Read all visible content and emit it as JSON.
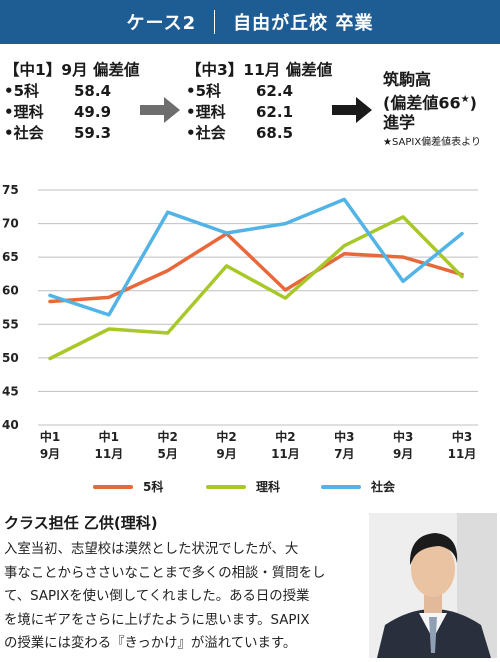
{
  "header": {
    "case": "ケース2",
    "title": "自由が丘校 卒業"
  },
  "before": {
    "title": "【中1】9月 偏差値",
    "rows": [
      {
        "subject": "•5科",
        "value": "58.4"
      },
      {
        "subject": "•理科",
        "value": "49.9"
      },
      {
        "subject": "•社会",
        "value": "59.3"
      }
    ]
  },
  "after": {
    "title": "【中3】11月 偏差値",
    "rows": [
      {
        "subject": "•5科",
        "value": "62.4"
      },
      {
        "subject": "•理科",
        "value": "62.1"
      },
      {
        "subject": "•社会",
        "value": "68.5"
      }
    ]
  },
  "result": {
    "school": "筑駒高",
    "score": "(偏差値66",
    "star": "★",
    "close": ")",
    "action": "進学",
    "note": "★SAPIX偏差値表より"
  },
  "chart_data": {
    "type": "line",
    "categories": [
      [
        "中1",
        "9月"
      ],
      [
        "中1",
        "11月"
      ],
      [
        "中2",
        "5月"
      ],
      [
        "中2",
        "9月"
      ],
      [
        "中2",
        "11月"
      ],
      [
        "中3",
        "7月"
      ],
      [
        "中3",
        "9月"
      ],
      [
        "中3",
        "11月"
      ]
    ],
    "ylim": [
      40,
      75
    ],
    "yticks": [
      40,
      45,
      50,
      55,
      60,
      65,
      70,
      75
    ],
    "grid": true,
    "legend_position": "bottom",
    "series": [
      {
        "name": "5科",
        "color": "#e8683a",
        "values": [
          58.4,
          59.0,
          63.0,
          68.5,
          60.1,
          65.5,
          65.0,
          62.4
        ]
      },
      {
        "name": "理科",
        "color": "#a8c82a",
        "values": [
          49.9,
          54.3,
          53.7,
          63.7,
          58.9,
          66.7,
          71.0,
          62.1
        ]
      },
      {
        "name": "社会",
        "color": "#52b4e6",
        "values": [
          59.3,
          56.4,
          71.7,
          68.6,
          70.0,
          73.6,
          61.4,
          68.5
        ]
      }
    ]
  },
  "teacher": {
    "name": "クラス担任 乙供(理科)",
    "lines": [
      "入室当初、志望校は漠然とした状況でしたが、大",
      "事なことからささいなことまで多くの相談・質問をし",
      "て、SAPIXを使い倒してくれました。ある日の授業",
      "を境にギアをさらに上げたように思います。SAPIX",
      "の授業には変わる『きっかけ』が溢れています。"
    ]
  }
}
